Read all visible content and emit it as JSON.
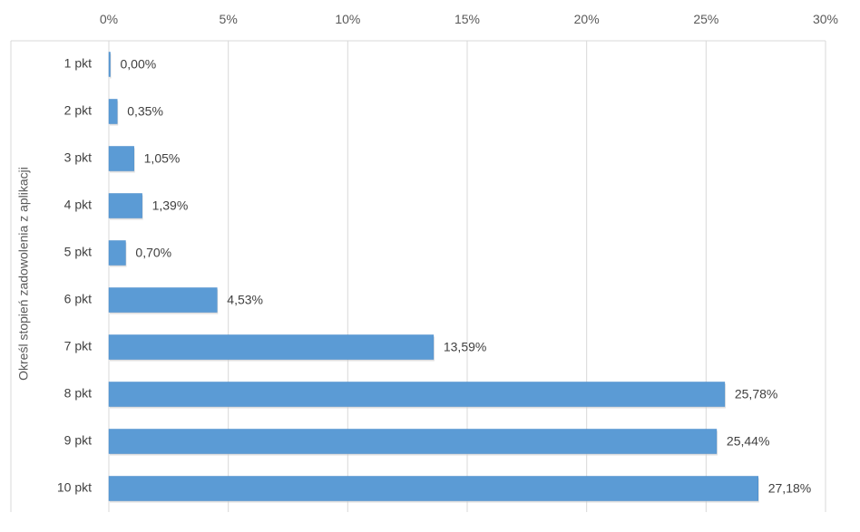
{
  "chart_data": {
    "type": "bar",
    "orientation": "horizontal",
    "title": "",
    "xlabel": "",
    "ylabel": "Określ stopień zadowolenia z aplikacji",
    "categories": [
      "1 pkt",
      "2 pkt",
      "3 pkt",
      "4 pkt",
      "5 pkt",
      "6 pkt",
      "7 pkt",
      "8 pkt",
      "9 pkt",
      "10 pkt"
    ],
    "values": [
      0.0,
      0.35,
      1.05,
      1.39,
      0.7,
      4.53,
      13.59,
      25.78,
      25.44,
      27.18
    ],
    "data_labels": [
      "0,00%",
      "0,35%",
      "1,05%",
      "1,39%",
      "0,70%",
      "4,53%",
      "13,59%",
      "25,78%",
      "25,44%",
      "27,18%"
    ],
    "xlim": [
      0,
      30
    ],
    "xticks": [
      0,
      5,
      10,
      15,
      20,
      25,
      30
    ],
    "xtick_labels": [
      "0%",
      "5%",
      "10%",
      "15%",
      "20%",
      "25%",
      "30%"
    ],
    "x_axis_position": "top",
    "grid": "vertical",
    "legend": "none",
    "bar_color": "#5b9bd5",
    "grid_color": "#d9d9d9"
  }
}
